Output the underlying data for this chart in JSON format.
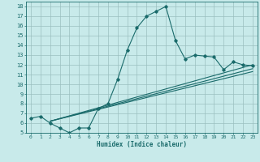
{
  "xlabel": "Humidex (Indice chaleur)",
  "bg_color": "#c8eaea",
  "line_color": "#1a6b6b",
  "grid_color": "#9bbfbf",
  "xlim": [
    -0.5,
    23.5
  ],
  "ylim": [
    5,
    18.5
  ],
  "xticks": [
    0,
    1,
    2,
    3,
    4,
    5,
    6,
    7,
    8,
    9,
    10,
    11,
    12,
    13,
    14,
    15,
    16,
    17,
    18,
    19,
    20,
    21,
    22,
    23
  ],
  "yticks": [
    5,
    6,
    7,
    8,
    9,
    10,
    11,
    12,
    13,
    14,
    15,
    16,
    17,
    18
  ],
  "line1_x": [
    0,
    1,
    2,
    3,
    4,
    5,
    6,
    7,
    8,
    9,
    10,
    11,
    12,
    13,
    14,
    15,
    16,
    17,
    18,
    19,
    20,
    21,
    22,
    23
  ],
  "line1_y": [
    6.5,
    6.7,
    6.0,
    5.5,
    5.0,
    5.5,
    5.5,
    7.5,
    8.0,
    10.5,
    13.5,
    15.8,
    17.0,
    17.5,
    18.0,
    14.5,
    12.6,
    13.0,
    12.9,
    12.8,
    11.5,
    12.3,
    12.0,
    11.9
  ],
  "line2_x": [
    2,
    23
  ],
  "line2_y": [
    6.2,
    12.0
  ],
  "line3_x": [
    2,
    23
  ],
  "line3_y": [
    6.2,
    11.6
  ],
  "line4_x": [
    2,
    23
  ],
  "line4_y": [
    6.2,
    11.3
  ]
}
